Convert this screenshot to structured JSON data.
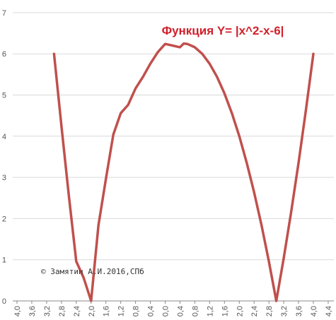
{
  "chart_data": {
    "type": "line",
    "title": "Функция Y= |x^2-x-6|",
    "annotation": "© Замятин А.И.2016,СПб",
    "xlabel": "",
    "ylabel": "",
    "x_tick_labels": [
      "4,0",
      "3,6",
      "3,2",
      "2,8",
      "2,4",
      "2,0",
      "1,6",
      "1,2",
      "0,8",
      "0,4",
      "0,0",
      "0,4",
      "0,8",
      "1,2",
      "1,6",
      "2,0",
      "2,4",
      "2,8",
      "3,2",
      "3,6",
      "4,0",
      "4,4"
    ],
    "y_ticks": [
      0,
      1,
      2,
      3,
      4,
      5,
      6,
      7
    ],
    "ylim": [
      0,
      7
    ],
    "grid": true,
    "series": [
      {
        "color": "#c0504d",
        "x": [
          -3,
          -2.8,
          -2.6,
          -2.4,
          -2.2,
          -2,
          -1.8,
          -1.6,
          -1.4,
          -1.2,
          -1,
          -0.8,
          -0.6,
          -0.4,
          -0.2,
          0,
          0.2,
          0.4,
          0.5,
          0.6,
          0.8,
          1,
          1.2,
          1.4,
          1.6,
          1.8,
          2,
          2.2,
          2.4,
          2.6,
          2.8,
          3,
          3.2,
          3.4,
          3.6,
          3.8,
          4
        ],
        "y": [
          6,
          4.24,
          2.56,
          0.96,
          0.56,
          0,
          1.84,
          2.96,
          4.04,
          4.56,
          4.76,
          5.16,
          5.44,
          5.76,
          6.04,
          6.24,
          6.2,
          6.16,
          6.25,
          6.24,
          6.16,
          6.0,
          5.76,
          5.44,
          5.04,
          4.56,
          4.0,
          3.36,
          2.64,
          1.84,
          0.96,
          0,
          1.04,
          2.16,
          3.36,
          4.64,
          6
        ]
      }
    ]
  }
}
